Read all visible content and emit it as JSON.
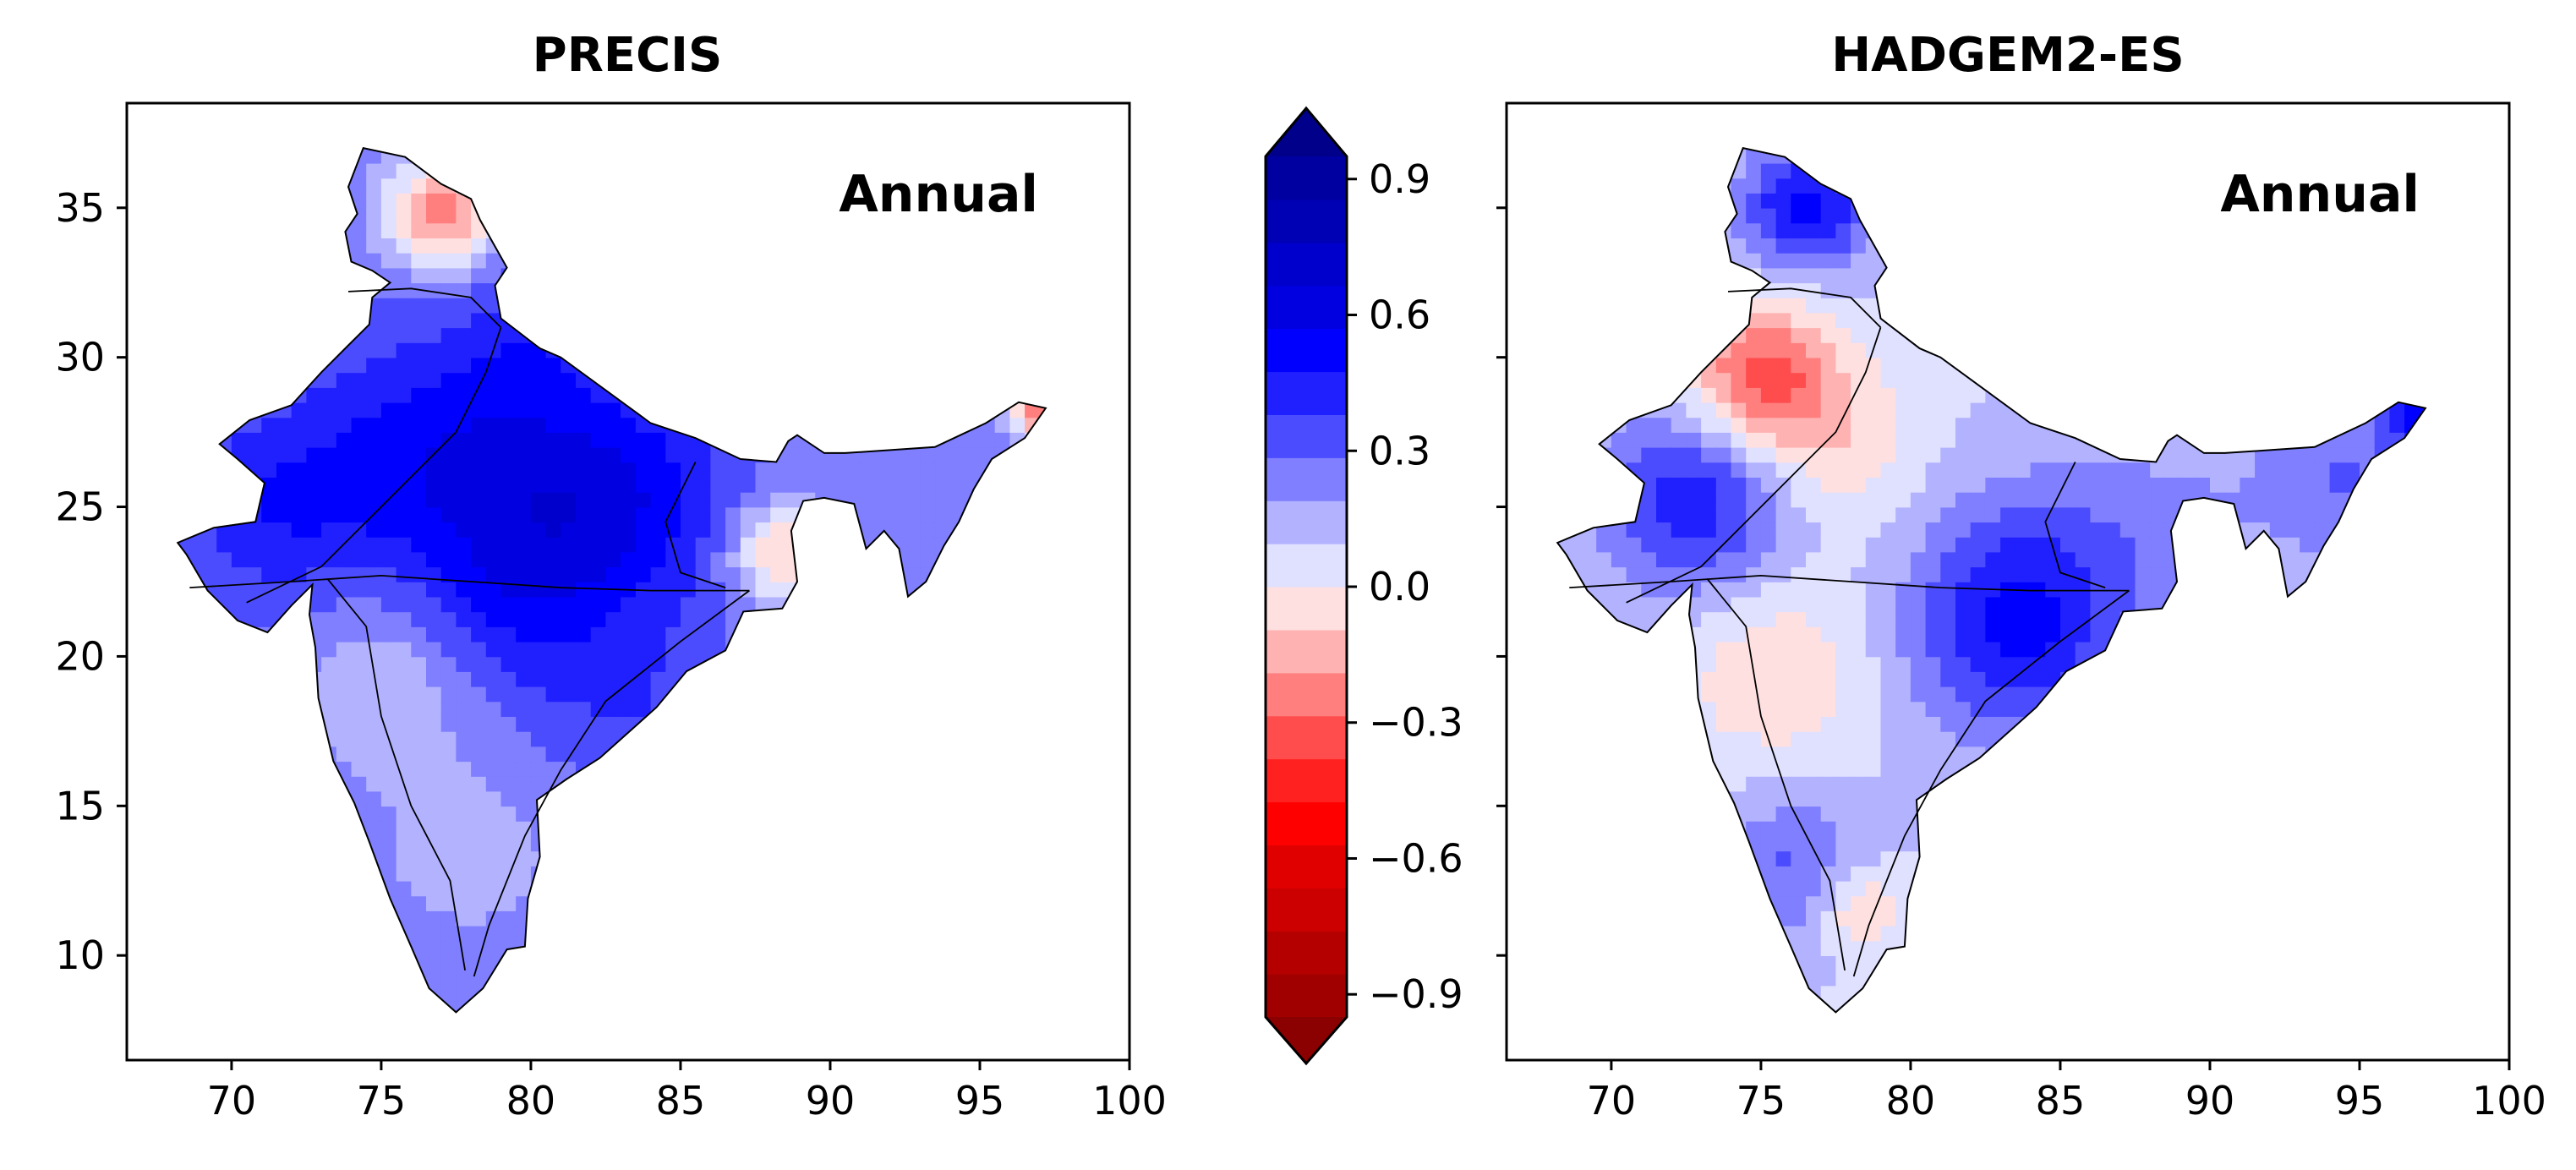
{
  "panels": [
    {
      "id": "precis",
      "title": "PRECIS",
      "label": "Annual",
      "xticks": [
        "70",
        "75",
        "80",
        "85",
        "90",
        "95",
        "100"
      ],
      "yticks": [
        "10",
        "15",
        "20",
        "25",
        "30",
        "35"
      ]
    },
    {
      "id": "hadgem",
      "title": "HADGEM2-ES",
      "label": "Annual",
      "xticks": [
        "70",
        "75",
        "80",
        "85",
        "90",
        "95",
        "100"
      ]
    }
  ],
  "chart_data": [
    {
      "type": "heatmap",
      "title": "PRECIS",
      "annotation": "Annual",
      "xlim": [
        66.5,
        100
      ],
      "ylim": [
        6.5,
        38.5
      ],
      "x_ticks": [
        70,
        75,
        80,
        85,
        90,
        95,
        100
      ],
      "y_ticks": [
        10,
        15,
        20,
        25,
        30,
        35
      ],
      "dominant_range": [
        0.2,
        0.6
      ],
      "description_values": "mostly positive (blue) across India, strongest 0.6 over north-central and western India; slight negatives near Jammu & Kashmir and eastern West Bengal"
    },
    {
      "type": "heatmap",
      "title": "HADGEM2-ES",
      "annotation": "Annual",
      "xlim": [
        66.5,
        100
      ],
      "ylim": [
        6.5,
        38.5
      ],
      "x_ticks": [
        70,
        75,
        80,
        85,
        90,
        95,
        100
      ],
      "y_ticks": [
        10,
        15,
        20,
        25,
        30,
        35
      ],
      "dominant_range": [
        -0.15,
        0.6
      ],
      "description_values": "positive over Kashmir, Rajasthan and east coast, weak negatives over Punjab and parts of the peninsula"
    }
  ],
  "colorbar": {
    "min": -1.05,
    "max": 1.05,
    "step": 0.1,
    "extend": "both",
    "tick_values": [
      -0.9,
      -0.6,
      -0.3,
      0.0,
      0.3,
      0.6,
      0.9
    ],
    "tick_labels": [
      "−0.9",
      "−0.6",
      "−0.3",
      "0.0",
      "0.3",
      "0.6",
      "0.9"
    ],
    "colors": [
      "#8b0000",
      "#a00000",
      "#b50000",
      "#cc0000",
      "#e00000",
      "#ff0000",
      "#ff2020",
      "#ff4c4c",
      "#ff7f7f",
      "#ffb2b2",
      "#ffe0e0",
      "#e0e0ff",
      "#b2b2ff",
      "#7f7fff",
      "#4c4cff",
      "#2020ff",
      "#0000ff",
      "#0000e0",
      "#0000cc",
      "#0000b5",
      "#0000a0",
      "#00008b"
    ]
  }
}
